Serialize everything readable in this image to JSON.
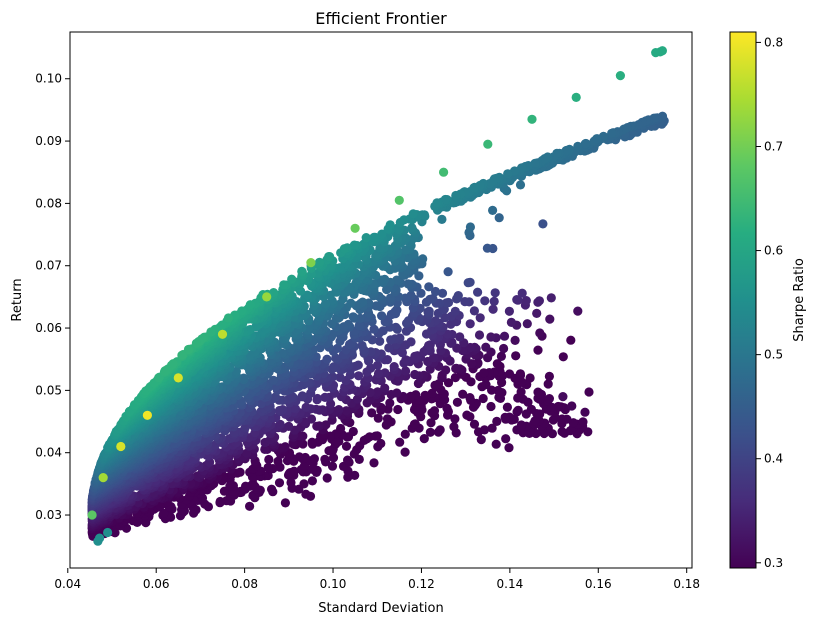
{
  "chart_data": {
    "type": "scatter",
    "title": "Efficient Frontier",
    "xlabel": "Standard Deviation",
    "ylabel": "Return",
    "xlim": [
      0.0405,
      0.1812
    ],
    "ylim": [
      0.0215,
      0.1075
    ],
    "xticks": [
      0.04,
      0.06,
      0.08,
      0.1,
      0.12,
      0.14,
      0.16,
      0.18
    ],
    "xtick_labels": [
      "0.04",
      "0.06",
      "0.08",
      "0.10",
      "0.12",
      "0.14",
      "0.16",
      "0.18"
    ],
    "yticks": [
      0.03,
      0.04,
      0.05,
      0.06,
      0.07,
      0.08,
      0.09,
      0.1
    ],
    "ytick_labels": [
      "0.03",
      "0.04",
      "0.05",
      "0.06",
      "0.07",
      "0.08",
      "0.09",
      "0.10"
    ],
    "grid": false,
    "colorbar": {
      "label": "Sharpe Ratio",
      "colormap": "viridis",
      "range": [
        0.295,
        0.81
      ],
      "ticks": [
        0.3,
        0.4,
        0.5,
        0.6,
        0.7,
        0.8
      ],
      "tick_labels": [
        "0.3",
        "0.4",
        "0.5",
        "0.6",
        "0.7",
        "0.8"
      ]
    },
    "frontier": {
      "description_points": [
        {
          "x": 0.0455,
          "y": 0.03,
          "sharpe": 0.68
        },
        {
          "x": 0.048,
          "y": 0.036,
          "sharpe": 0.74
        },
        {
          "x": 0.052,
          "y": 0.041,
          "sharpe": 0.78
        },
        {
          "x": 0.058,
          "y": 0.046,
          "sharpe": 0.8
        },
        {
          "x": 0.065,
          "y": 0.052,
          "sharpe": 0.78
        },
        {
          "x": 0.075,
          "y": 0.059,
          "sharpe": 0.76
        },
        {
          "x": 0.085,
          "y": 0.065,
          "sharpe": 0.73
        },
        {
          "x": 0.095,
          "y": 0.0705,
          "sharpe": 0.71
        },
        {
          "x": 0.105,
          "y": 0.076,
          "sharpe": 0.69
        },
        {
          "x": 0.115,
          "y": 0.0805,
          "sharpe": 0.67
        },
        {
          "x": 0.125,
          "y": 0.085,
          "sharpe": 0.65
        },
        {
          "x": 0.135,
          "y": 0.0895,
          "sharpe": 0.64
        },
        {
          "x": 0.145,
          "y": 0.0935,
          "sharpe": 0.63
        },
        {
          "x": 0.155,
          "y": 0.097,
          "sharpe": 0.62
        },
        {
          "x": 0.165,
          "y": 0.1005,
          "sharpe": 0.62
        },
        {
          "x": 0.174,
          "y": 0.1043,
          "sharpe": 0.61
        }
      ],
      "outliers": [
        {
          "x": 0.0468,
          "y": 0.0258,
          "sharpe": 0.55
        },
        {
          "x": 0.0472,
          "y": 0.0263,
          "sharpe": 0.55
        },
        {
          "x": 0.049,
          "y": 0.0272,
          "sharpe": 0.55
        },
        {
          "x": 0.173,
          "y": 0.1042,
          "sharpe": 0.61
        },
        {
          "x": 0.1745,
          "y": 0.1045,
          "sharpe": 0.61
        },
        {
          "x": 0.157,
          "y": 0.0465,
          "sharpe": 0.3
        },
        {
          "x": 0.154,
          "y": 0.0475,
          "sharpe": 0.3
        },
        {
          "x": 0.152,
          "y": 0.049,
          "sharpe": 0.31
        }
      ]
    }
  }
}
